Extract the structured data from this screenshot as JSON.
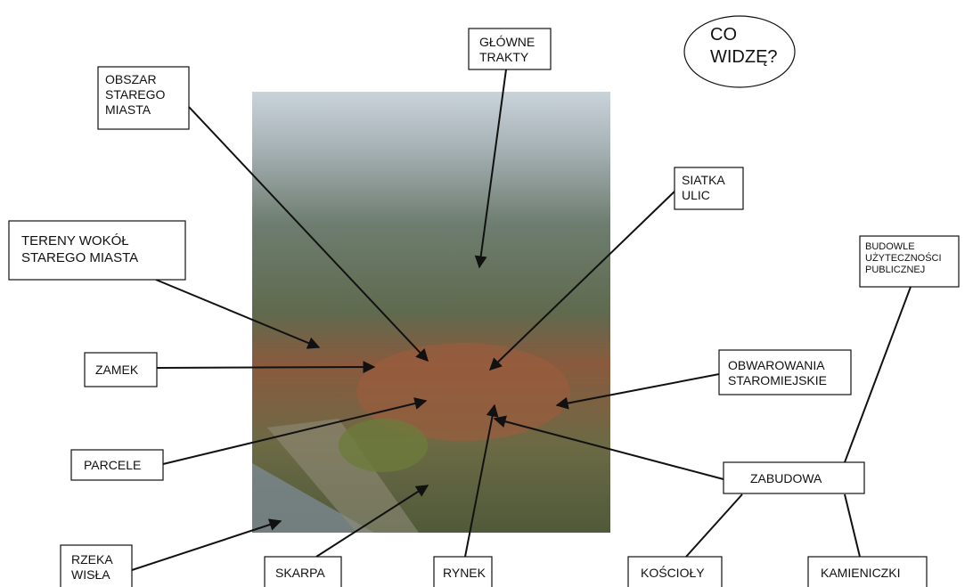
{
  "bubble": {
    "lines": [
      "CO",
      "WIDZĘ?"
    ]
  },
  "labels": [
    {
      "lines": [
        "GŁÓWNE",
        "TRAKTY"
      ]
    },
    {
      "lines": [
        "OBSZAR",
        "STAREGO",
        "MIASTA"
      ]
    },
    {
      "lines": [
        "SIATKA",
        "ULIC"
      ]
    },
    {
      "lines": [
        "TERENY WOKÓŁ",
        "STAREGO MIASTA"
      ]
    },
    {
      "lines": [
        "BUDOWLE",
        "UŻYTECZNOŚCI",
        "PUBLICZNEJ"
      ]
    },
    {
      "lines": [
        "ZAMEK"
      ]
    },
    {
      "lines": [
        "OBWAROWANIA",
        "STAROMIEJSKIE"
      ]
    },
    {
      "lines": [
        "PARCELE"
      ]
    },
    {
      "lines": [
        "ZABUDOWA"
      ]
    },
    {
      "lines": [
        "RZEKA",
        "WISŁA"
      ]
    },
    {
      "lines": [
        "SKARPA"
      ]
    },
    {
      "lines": [
        "RYNEK"
      ]
    },
    {
      "lines": [
        "KOŚCIOŁY"
      ]
    },
    {
      "lines": [
        "KAMIENICZKI"
      ]
    }
  ]
}
